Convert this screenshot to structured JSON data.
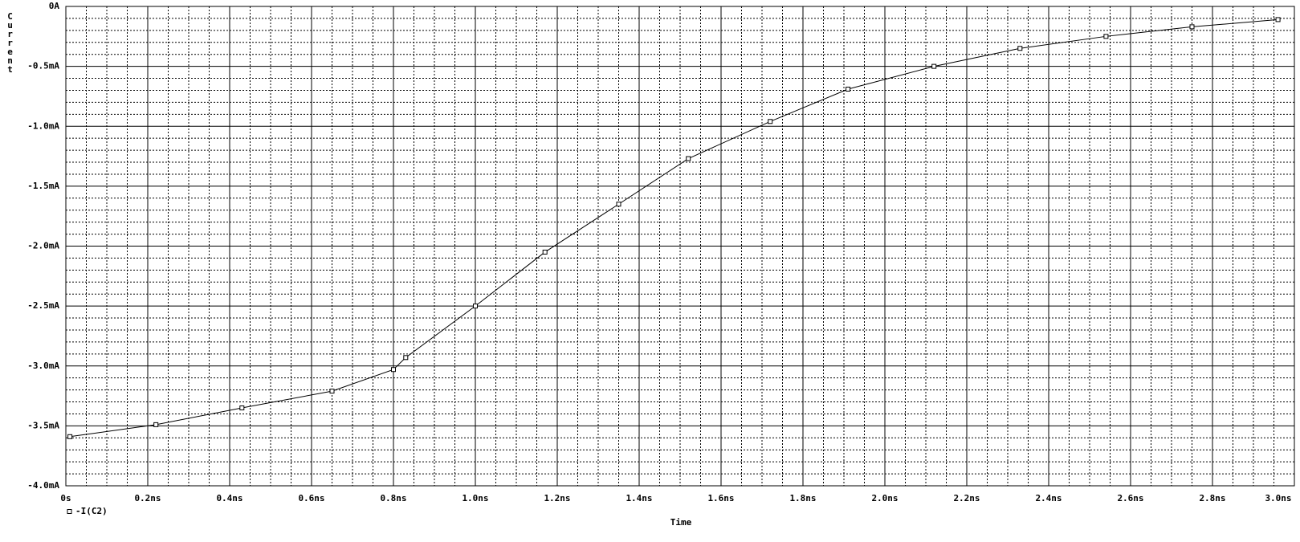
{
  "chart_data": {
    "type": "line",
    "y_label": "Current",
    "x_label": "Time",
    "xlim": [
      0,
      3.0
    ],
    "ylim": [
      -4.0,
      0
    ],
    "xticks": [
      {
        "value": 0,
        "label": "0s"
      },
      {
        "value": 0.2,
        "label": "0.2ns"
      },
      {
        "value": 0.4,
        "label": "0.4ns"
      },
      {
        "value": 0.6,
        "label": "0.6ns"
      },
      {
        "value": 0.8,
        "label": "0.8ns"
      },
      {
        "value": 1.0,
        "label": "1.0ns"
      },
      {
        "value": 1.2,
        "label": "1.2ns"
      },
      {
        "value": 1.4,
        "label": "1.4ns"
      },
      {
        "value": 1.6,
        "label": "1.6ns"
      },
      {
        "value": 1.8,
        "label": "1.8ns"
      },
      {
        "value": 2.0,
        "label": "2.0ns"
      },
      {
        "value": 2.2,
        "label": "2.2ns"
      },
      {
        "value": 2.4,
        "label": "2.4ns"
      },
      {
        "value": 2.6,
        "label": "2.6ns"
      },
      {
        "value": 2.8,
        "label": "2.8ns"
      },
      {
        "value": 3.0,
        "label": "3.0ns"
      }
    ],
    "yticks": [
      {
        "value": 0,
        "label": "0A"
      },
      {
        "value": -0.5,
        "label": "-0.5mA"
      },
      {
        "value": -1.0,
        "label": "-1.0mA"
      },
      {
        "value": -1.5,
        "label": "-1.5mA"
      },
      {
        "value": -2.0,
        "label": "-2.0mA"
      },
      {
        "value": -2.5,
        "label": "-2.5mA"
      },
      {
        "value": -3.0,
        "label": "-3.0mA"
      },
      {
        "value": -3.5,
        "label": "-3.5mA"
      },
      {
        "value": -4.0,
        "label": "-4.0mA"
      }
    ],
    "grid": true,
    "legend": "bottom-left",
    "x": [
      0.01,
      0.22,
      0.43,
      0.65,
      0.8,
      0.83,
      1.0,
      1.17,
      1.35,
      1.52,
      1.72,
      1.91,
      2.12,
      2.33,
      2.54,
      2.75,
      2.96
    ],
    "series": [
      {
        "name": "-I(C2)",
        "color": "#000000",
        "values": [
          -3.59,
          -3.49,
          -3.35,
          -3.21,
          -3.03,
          -2.93,
          -2.5,
          -2.05,
          -1.65,
          -1.27,
          -0.96,
          -0.69,
          -0.5,
          -0.35,
          -0.25,
          -0.17,
          -0.11
        ]
      }
    ]
  }
}
